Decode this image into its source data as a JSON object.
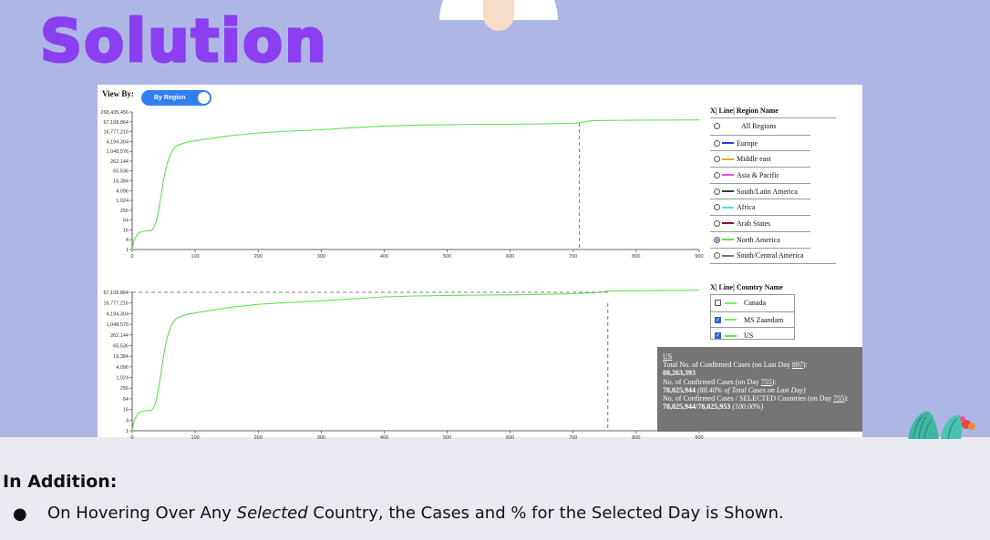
{
  "slide": {
    "title": "Solution",
    "addition_heading": "In Addition:",
    "bullet_prefix": "On Hovering Over Any ",
    "bullet_emph": "Selected",
    "bullet_suffix": " Country, the Cases and % for the Selected Day is Shown.",
    "bullet_glyph": "●"
  },
  "controls": {
    "view_by_label": "View By:",
    "toggle_label": "By Region"
  },
  "colors": {
    "series_green": "#5de34f",
    "accent_blue": "#2f7fef",
    "title_purple": "#8a3ff0",
    "band": "#aeb6e6"
  },
  "region_legend": {
    "header": "X| Line| Region Name",
    "items": [
      {
        "label": "All Regions",
        "color": "",
        "selected": false
      },
      {
        "label": "Europe",
        "color": "#2c3fd6",
        "selected": false
      },
      {
        "label": "Middle east",
        "color": "#f0a020",
        "selected": false
      },
      {
        "label": "Asia & Pacific",
        "color": "#e04ed8",
        "selected": false
      },
      {
        "label": "South/Latin America",
        "color": "#1f4a1f",
        "selected": false
      },
      {
        "label": "Africa",
        "color": "#5fd0f0",
        "selected": false
      },
      {
        "label": "Arab States",
        "color": "#8b1a1a",
        "selected": false
      },
      {
        "label": "North America",
        "color": "#5de34f",
        "selected": true
      },
      {
        "label": "South/Central America",
        "color": "#777777",
        "selected": false
      }
    ]
  },
  "country_legend": {
    "header": "X| Line| Country Name",
    "items": [
      {
        "label": "Canada",
        "color": "#7be86d",
        "checked": false
      },
      {
        "label": "MS Zaandam",
        "color": "#7be86d",
        "checked": true
      },
      {
        "label": "US",
        "color": "#5de34f",
        "checked": true
      }
    ]
  },
  "tooltip": {
    "country": "US",
    "line1_prefix": "Total No. of Confirmed Cases (on Last Day ",
    "line1_day": "897",
    "line1_suffix": "):",
    "total": "88,263,393",
    "line3_prefix": "No. of Confirmed Cases (on Day ",
    "line3_day": "755",
    "line3_suffix": "):",
    "day_value": "78,025,944",
    "day_pct": "(88.40% of Total Cases on Last Day)",
    "line5_prefix": "No. of Confirmed Cases / SELECTED Countries (on Day ",
    "line5_day": "755",
    "line5_suffix": "):",
    "ratio": "78,025,944/78,025,953",
    "ratio_pct": "(100.00%)"
  },
  "chart_data": [
    {
      "type": "line",
      "scale": "log2",
      "yticks": [
        "268,435,456",
        "67,108,864",
        "16,777,216",
        "4,194,304",
        "1,048,576",
        "262,144",
        "65,536",
        "16,384",
        "4,096",
        "1,024",
        "256",
        "64",
        "16",
        "4",
        "1"
      ],
      "xticks": [
        "0",
        "100",
        "200",
        "300",
        "400",
        "500",
        "600",
        "700",
        "800",
        "900"
      ],
      "xlim": [
        0,
        900
      ],
      "marker_day": 710,
      "series": [
        {
          "color": "#5de34f",
          "x": [
            0,
            3,
            6,
            10,
            14,
            18,
            22,
            26,
            30,
            34,
            37,
            40,
            45,
            50,
            55,
            60,
            65,
            70,
            80,
            90,
            100,
            120,
            150,
            200,
            250,
            300,
            350,
            400,
            450,
            500,
            550,
            600,
            650,
            700,
            710,
            730,
            800,
            900
          ],
          "y": [
            1,
            4,
            6,
            10,
            12,
            13,
            14,
            14,
            14,
            20,
            40,
            100,
            1200,
            20000,
            160000,
            600000,
            1400000,
            2200000,
            3200000,
            4000000,
            4600000,
            6000000,
            9000000,
            14000000,
            18000000,
            22000000,
            29000000,
            37000000,
            42000000,
            45000000,
            47000000,
            48000000,
            50000000,
            54000000,
            60000000,
            80000000,
            84000000,
            88000000
          ]
        }
      ]
    },
    {
      "type": "line",
      "scale": "log2",
      "yticks": [
        "67,108,864",
        "16,777,216",
        "4,194,304",
        "1,048,576",
        "262,144",
        "65,536",
        "16,384",
        "4,096",
        "1,024",
        "256",
        "64",
        "16",
        "4",
        "1"
      ],
      "xticks": [
        "0",
        "100",
        "200",
        "300",
        "400",
        "500",
        "600",
        "700",
        "800",
        "900"
      ],
      "xlim": [
        0,
        900
      ],
      "marker_day": 755,
      "series": [
        {
          "color": "#5de34f",
          "x": [
            0,
            3,
            6,
            10,
            14,
            18,
            22,
            26,
            30,
            34,
            37,
            40,
            45,
            50,
            55,
            60,
            65,
            70,
            80,
            90,
            100,
            120,
            150,
            200,
            250,
            300,
            350,
            400,
            450,
            500,
            550,
            600,
            650,
            700,
            740,
            755,
            800,
            900
          ],
          "y": [
            1,
            4,
            6,
            10,
            12,
            13,
            14,
            14,
            14,
            20,
            40,
            100,
            1200,
            20000,
            160000,
            600000,
            1400000,
            2200000,
            3200000,
            4000000,
            4600000,
            6000000,
            9000000,
            14000000,
            18000000,
            22000000,
            29000000,
            37000000,
            42000000,
            45000000,
            47000000,
            48000000,
            52000000,
            56000000,
            66000000,
            78025944,
            82000000,
            88000000
          ]
        }
      ]
    }
  ]
}
